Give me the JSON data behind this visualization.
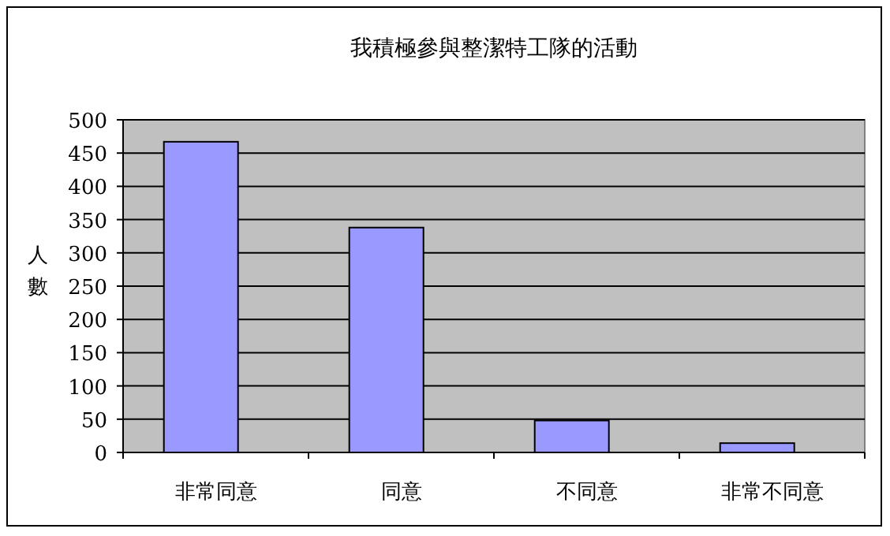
{
  "chart_data": {
    "type": "bar",
    "title": "我積極參與整潔特工隊的活動",
    "ylabel": "人數",
    "categories": [
      "非常同意",
      "同意",
      "不同意",
      "非常不同意"
    ],
    "values": [
      467,
      338,
      48,
      14
    ],
    "color": "#9999ff",
    "ylim": [
      0,
      500
    ],
    "yticks": [
      0,
      50,
      100,
      150,
      200,
      250,
      300,
      350,
      400,
      450,
      500
    ],
    "grid": "y"
  }
}
